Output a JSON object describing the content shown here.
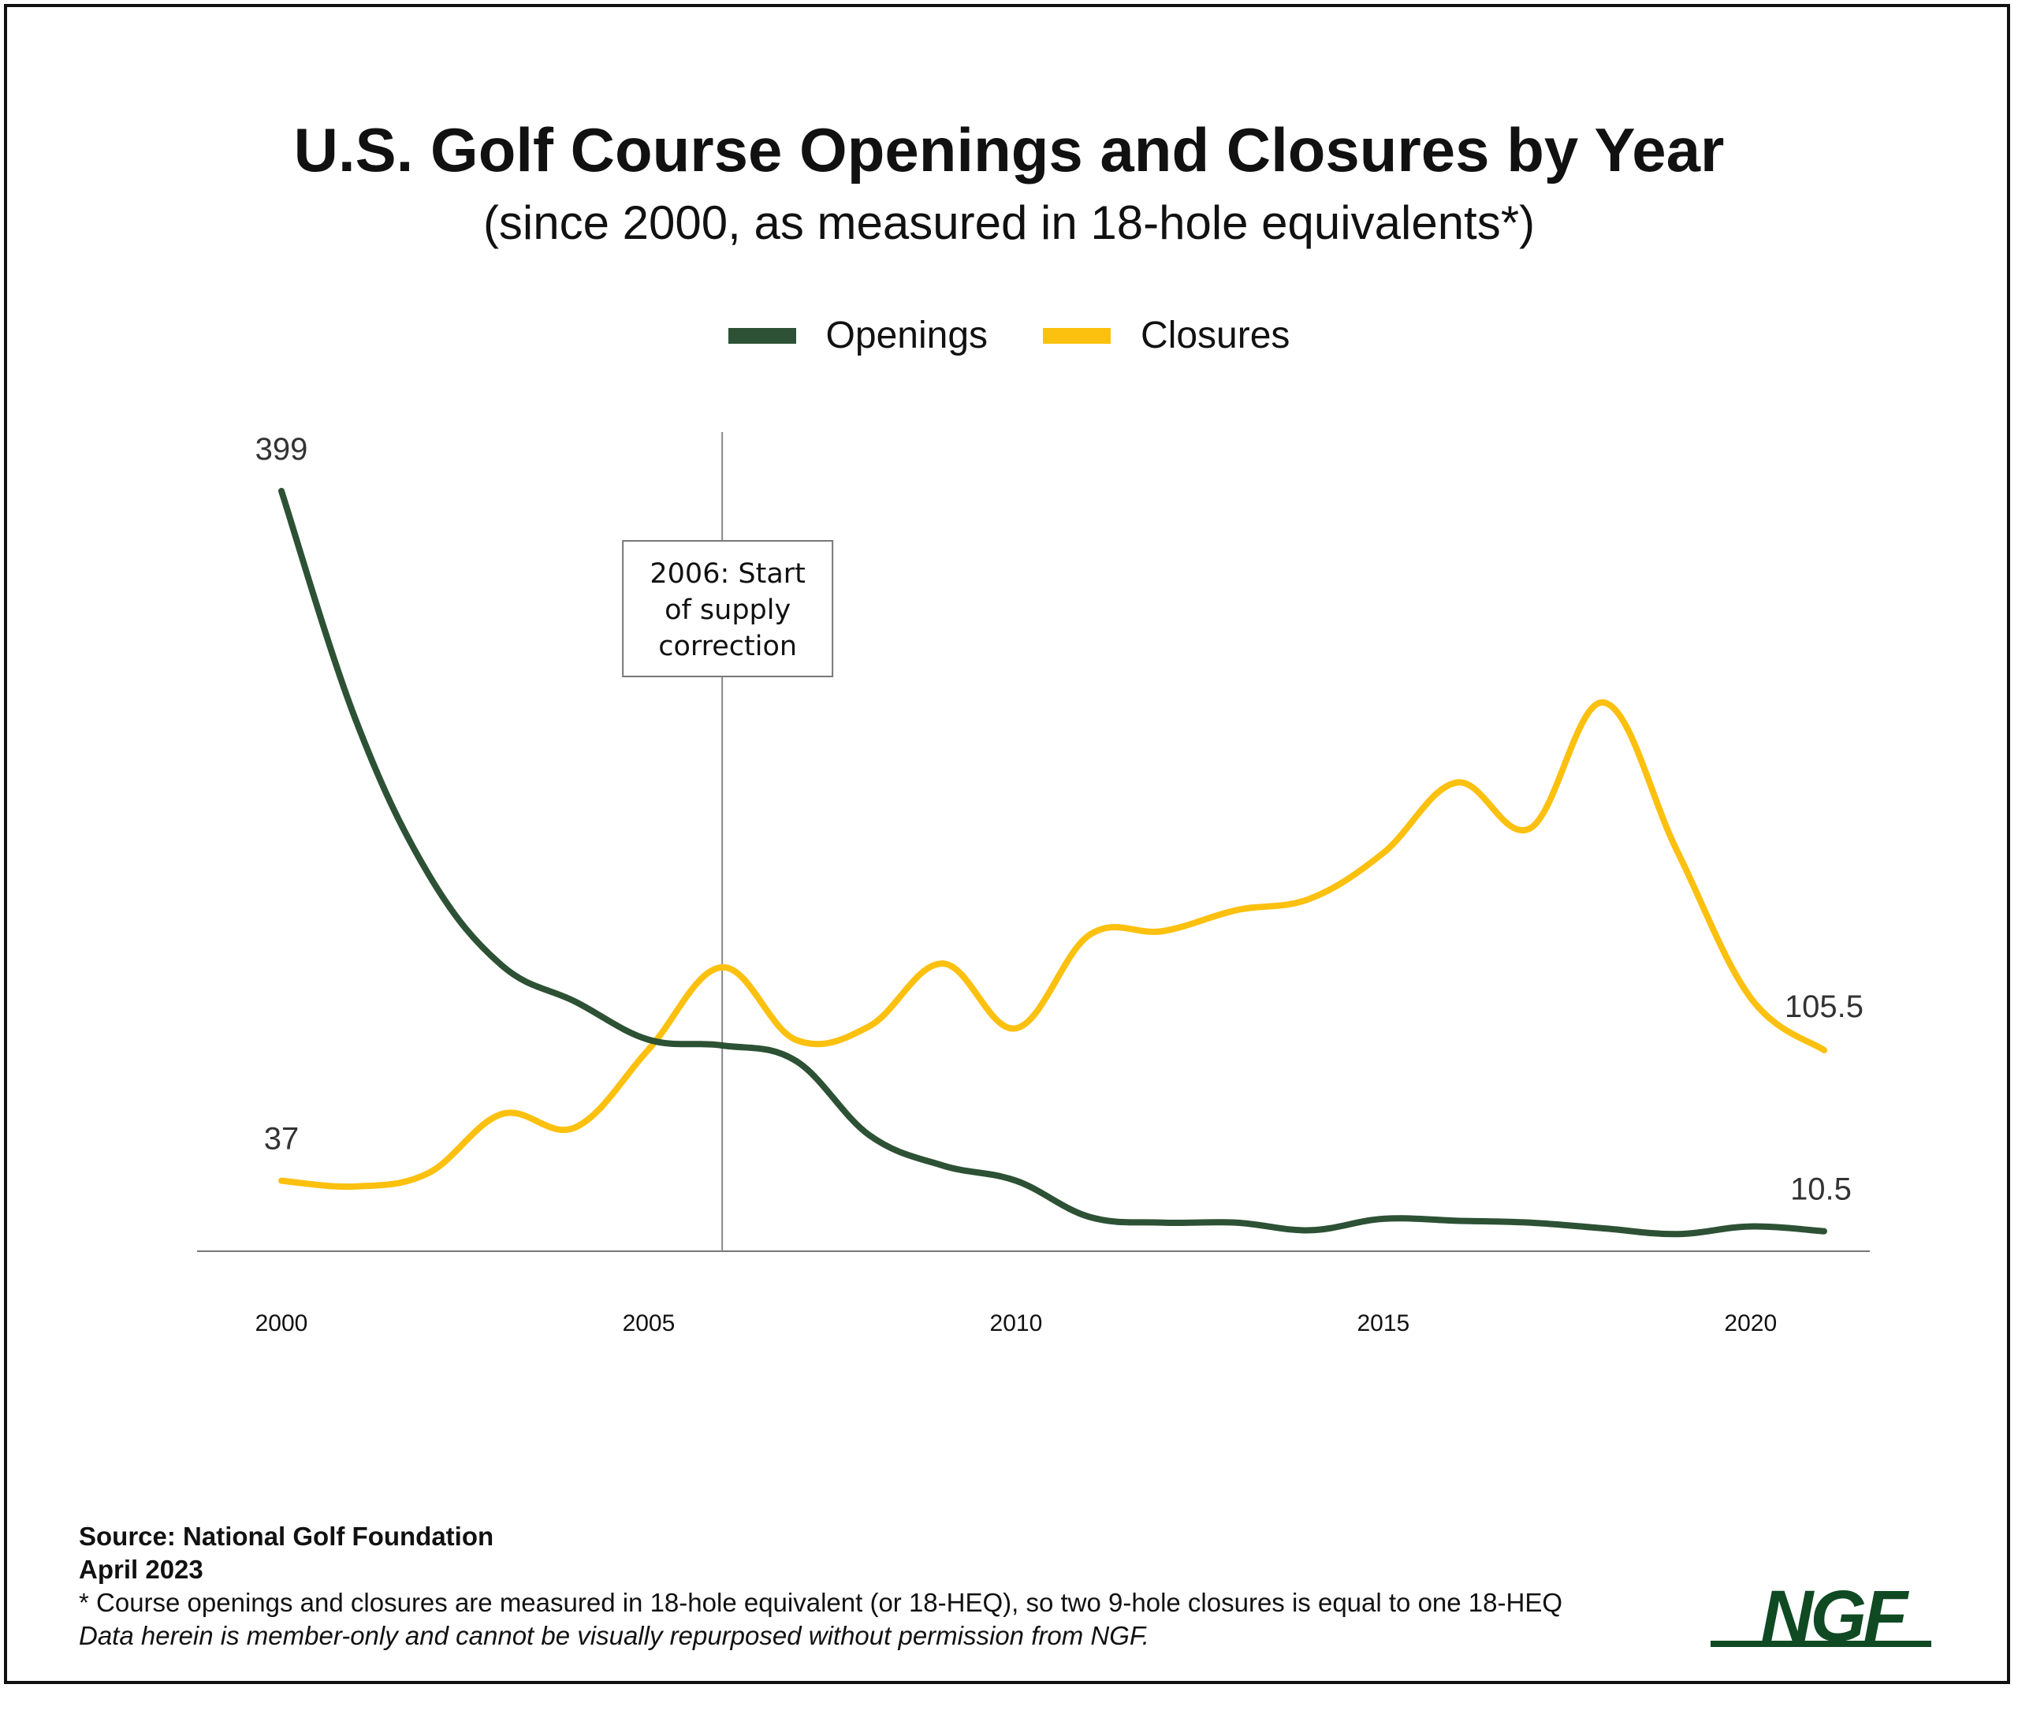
{
  "chart_data": {
    "type": "line",
    "title": "U.S. Golf Course Openings and Closures by Year",
    "subtitle": "(since 2000, as measured in 18-hole equivalents*)",
    "x_ticks": [
      2000,
      2005,
      2010,
      2015,
      2020
    ],
    "x_tick_labels": [
      "2000",
      "2005",
      "2010",
      "2015",
      "2020"
    ],
    "xlim": [
      2000,
      2021
    ],
    "ylim": [
      0,
      420
    ],
    "grid": false,
    "legend_position": "top-center",
    "series": [
      {
        "name": "Openings",
        "color": "#2d5134",
        "x": [
          2000,
          2001,
          2002,
          2003,
          2004,
          2005,
          2006,
          2007,
          2008,
          2009,
          2010,
          2011,
          2012,
          2013,
          2014,
          2015,
          2016,
          2017,
          2018,
          2019,
          2020,
          2021
        ],
        "values": [
          399,
          280,
          198,
          150,
          131,
          111,
          108,
          100,
          61,
          45,
          37,
          18,
          15,
          15,
          11,
          17,
          16,
          15,
          12,
          9,
          13,
          10.5
        ]
      },
      {
        "name": "Closures",
        "color": "#fcc00e",
        "x": [
          2000,
          2001,
          2002,
          2003,
          2004,
          2005,
          2006,
          2007,
          2008,
          2009,
          2010,
          2011,
          2012,
          2013,
          2014,
          2015,
          2016,
          2017,
          2018,
          2019,
          2020,
          2021
        ],
        "values": [
          37,
          34,
          41,
          72,
          65,
          106,
          149,
          111,
          118,
          151,
          117,
          166,
          168,
          179,
          185,
          209,
          246,
          222,
          288,
          210,
          133,
          105.5
        ]
      }
    ],
    "data_labels": [
      {
        "series": "Openings",
        "x": 2000,
        "text": "399"
      },
      {
        "series": "Closures",
        "x": 2000,
        "text": "37"
      },
      {
        "series": "Closures",
        "x": 2021,
        "text": "105.5"
      },
      {
        "series": "Openings",
        "x": 2021,
        "text": "10.5"
      }
    ],
    "annotation": {
      "x": 2006,
      "lines": [
        "2006: Start",
        "of supply",
        "correction"
      ]
    }
  },
  "footer": {
    "source": "Source: National Golf Foundation",
    "date": "April 2023",
    "note": "* Course openings and closures are measured in 18-hole equivalent (or 18-HEQ), so two 9-hole closures is equal to one 18-HEQ",
    "disclaimer": "Data herein is member-only and cannot be visually repurposed without permission from NGF.",
    "logo_text": "NGF",
    "logo_color": "#0f4a23"
  }
}
